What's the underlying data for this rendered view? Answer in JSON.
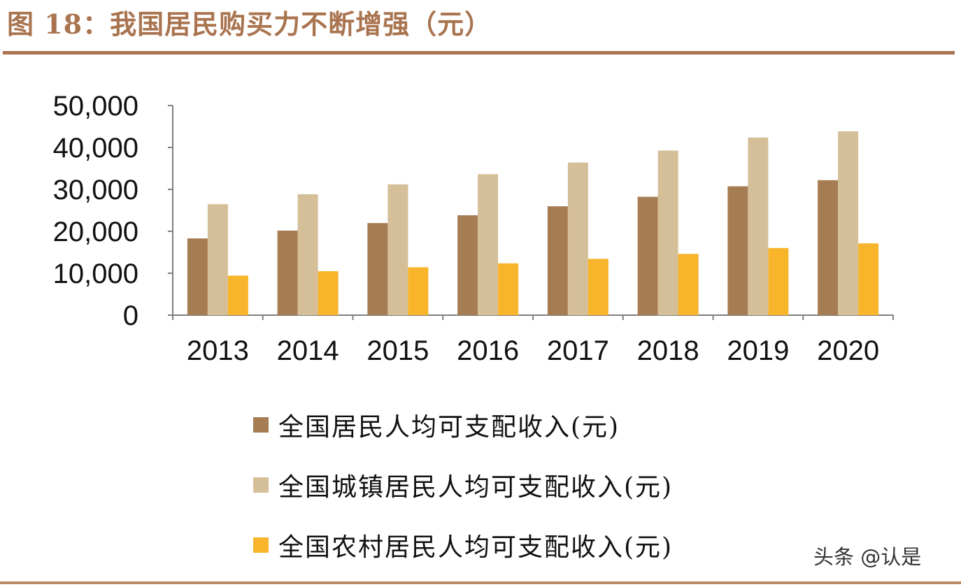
{
  "title": "图 18：我国居民购买力不断增强（元）",
  "watermark": "头条 @认是",
  "chart_data": {
    "type": "bar",
    "categories": [
      "2013",
      "2014",
      "2015",
      "2016",
      "2017",
      "2018",
      "2019",
      "2020"
    ],
    "ylim": [
      0,
      50000
    ],
    "yticks": [
      "0",
      "10,000",
      "20,000",
      "30,000",
      "40,000",
      "50,000"
    ],
    "ytick_values": [
      0,
      10000,
      20000,
      30000,
      40000,
      50000
    ],
    "grid": false,
    "legend_position": "bottom",
    "series": [
      {
        "name": "全国居民人均可支配收入(元)",
        "color": "#a67c52",
        "values": [
          18311,
          20167,
          21966,
          23821,
          25974,
          28228,
          30733,
          32189
        ]
      },
      {
        "name": "全国城镇居民人均可支配收入(元)",
        "color": "#d5bf98",
        "values": [
          26467,
          28844,
          31195,
          33616,
          36396,
          39251,
          42359,
          43834
        ]
      },
      {
        "name": "全国农村居民人均可支配收入(元)",
        "color": "#f8b52c",
        "values": [
          9430,
          10489,
          11422,
          12363,
          13432,
          14617,
          16021,
          17131
        ]
      }
    ]
  }
}
